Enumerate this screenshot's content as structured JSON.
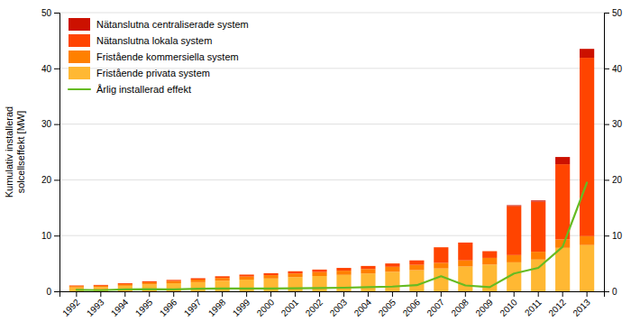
{
  "chart_data": {
    "type": "bar",
    "stacked": true,
    "grid": true,
    "legend": "upper left",
    "ylabel": "Kumulativ installerad\nsolcellseffekt [MW]",
    "categories": [
      "1992",
      "1993",
      "1994",
      "1995",
      "1996",
      "1997",
      "1998",
      "1999",
      "2000",
      "2001",
      "2002",
      "2003",
      "2004",
      "2005",
      "2006",
      "2007",
      "2008",
      "2009",
      "2010",
      "2011",
      "2012",
      "2013"
    ],
    "ylim": [
      0,
      50
    ],
    "yticks": [
      0,
      10,
      20,
      30,
      40,
      50
    ],
    "y2lim": [
      0,
      50
    ],
    "y2ticks": [
      0,
      10,
      20,
      30,
      40,
      50
    ],
    "series": [
      {
        "name": "Fristående privata system",
        "type": "bar",
        "color": "#FFB833",
        "values": [
          0.7,
          0.75,
          1.0,
          1.25,
          1.45,
          1.65,
          1.9,
          2.1,
          2.3,
          2.55,
          2.75,
          2.95,
          3.2,
          3.5,
          3.8,
          4.1,
          4.45,
          4.8,
          5.2,
          5.7,
          7.8,
          8.3
        ]
      },
      {
        "name": "Fristående kommersiella system",
        "type": "bar",
        "color": "#FF8000",
        "values": [
          0.25,
          0.25,
          0.3,
          0.35,
          0.4,
          0.45,
          0.5,
          0.55,
          0.6,
          0.65,
          0.7,
          0.75,
          0.8,
          0.9,
          0.95,
          1.0,
          1.1,
          1.2,
          1.3,
          1.4,
          1.5,
          1.6
        ]
      },
      {
        "name": "Nätanslutna lokala system",
        "type": "bar",
        "color": "#FF4400",
        "values": [
          0.1,
          0.15,
          0.15,
          0.2,
          0.2,
          0.25,
          0.3,
          0.35,
          0.35,
          0.4,
          0.45,
          0.5,
          0.55,
          0.6,
          0.8,
          2.8,
          3.2,
          1.2,
          8.8,
          9.0,
          13.5,
          32.0
        ]
      },
      {
        "name": "Nätanslutna centraliserade system",
        "type": "bar",
        "color": "#CC1100",
        "values": [
          0.0,
          0.0,
          0.0,
          0.0,
          0.0,
          0.0,
          0.0,
          0.0,
          0.0,
          0.0,
          0.0,
          0.0,
          0.0,
          0.0,
          0.0,
          0.0,
          0.0,
          0.0,
          0.15,
          0.2,
          1.3,
          1.6
        ]
      },
      {
        "name": "Årlig installerad effekt",
        "type": "line",
        "axis": "y2",
        "color": "#66BB22",
        "values": [
          0.25,
          0.2,
          0.35,
          0.4,
          0.35,
          0.45,
          0.5,
          0.52,
          0.5,
          0.55,
          0.6,
          0.65,
          0.75,
          0.85,
          1.1,
          2.7,
          1.05,
          0.75,
          3.2,
          4.2,
          8.0,
          19.5
        ]
      }
    ]
  }
}
